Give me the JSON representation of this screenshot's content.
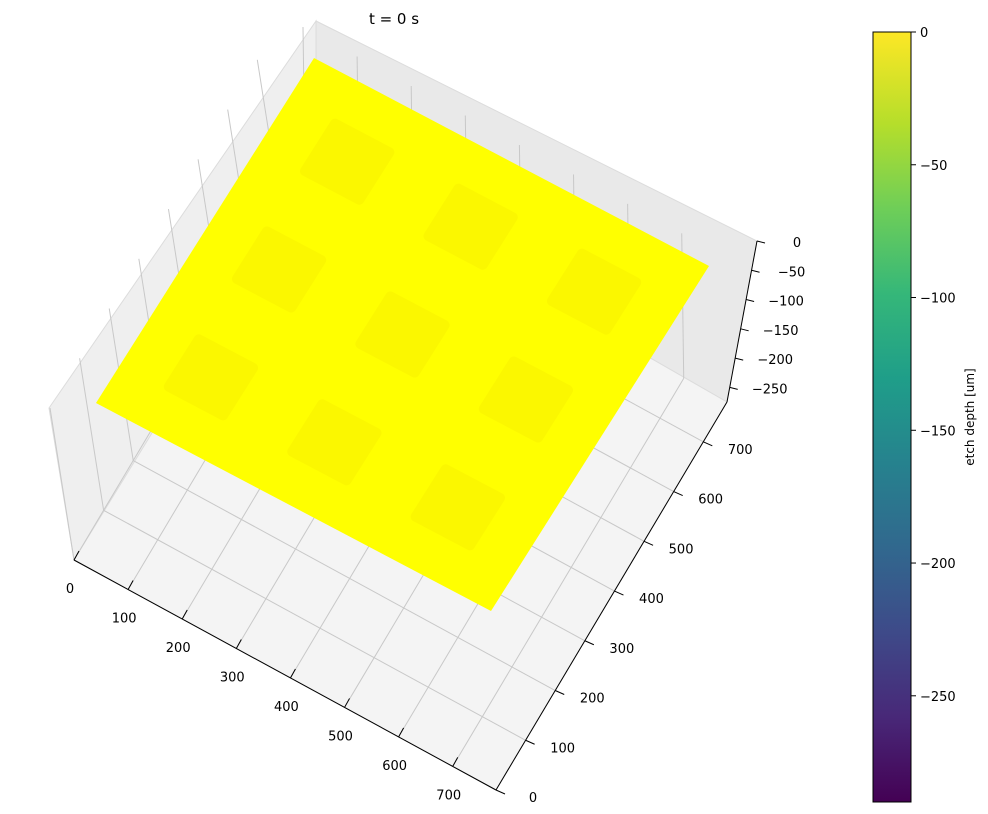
{
  "chart_data": {
    "type": "surface3d",
    "title": "t = 0 s",
    "x_ticks": [
      0,
      100,
      200,
      300,
      400,
      500,
      600,
      700
    ],
    "y_ticks": [
      0,
      100,
      200,
      300,
      400,
      500,
      600,
      700
    ],
    "z_ticks": [
      0,
      -50,
      -100,
      -150,
      -200,
      -250
    ],
    "x_tick_labels": [
      "0",
      "100",
      "200",
      "300",
      "400",
      "500",
      "600",
      "700"
    ],
    "y_tick_labels": [
      "0",
      "100",
      "200",
      "300",
      "400",
      "500",
      "600",
      "700"
    ],
    "z_tick_labels": [
      "0",
      "−50",
      "−100",
      "−150",
      "−200",
      "−250"
    ],
    "xlim": [
      0,
      780
    ],
    "ylim": [
      0,
      780
    ],
    "zlim": [
      -275,
      0
    ],
    "surface": {
      "z_value": 0,
      "color": "#ffff00",
      "pad_color": "#fbf700",
      "pad_centers": [
        [
          80,
          170
        ],
        [
          95,
          150
        ],
        [
          110,
          135
        ],
        [
          80,
          360
        ],
        [
          95,
          340
        ],
        [
          110,
          320
        ],
        [
          80,
          555
        ],
        [
          95,
          530
        ],
        [
          110,
          510
        ]
      ]
    },
    "colorbar": {
      "label": "etch depth [um]",
      "ticks": [
        0,
        -50,
        -100,
        -150,
        -200,
        -250
      ],
      "tick_labels": [
        "0",
        "−50",
        "−100",
        "−150",
        "−200",
        "−250"
      ],
      "vmin": -290,
      "vmax": 0,
      "colormap": "viridis"
    },
    "grid": true
  }
}
